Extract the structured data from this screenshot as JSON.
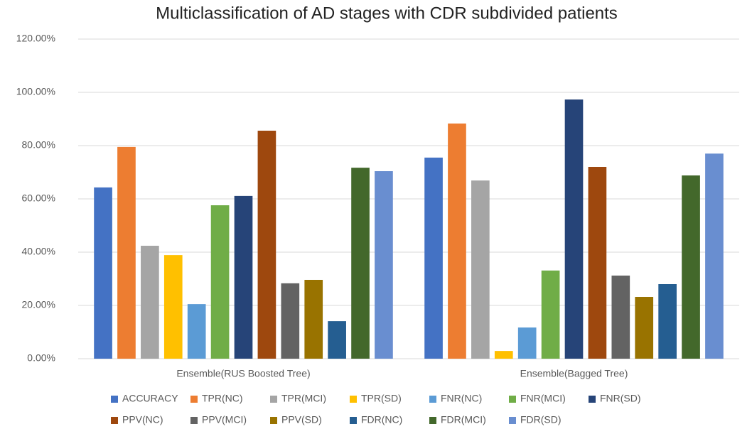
{
  "chart_data": {
    "type": "bar",
    "title": "Multiclassification of AD stages with CDR subdivided patients",
    "categories": [
      "Ensemble(RUS Boosted Tree)",
      "Ensemble(Bagged Tree)"
    ],
    "series": [
      {
        "name": "ACCURACY",
        "color": "#4472c4",
        "values": [
          64.3,
          75.5
        ]
      },
      {
        "name": "TPR(NC)",
        "color": "#ed7d31",
        "values": [
          79.5,
          88.3
        ]
      },
      {
        "name": "TPR(MCI)",
        "color": "#a5a5a5",
        "values": [
          42.4,
          66.9
        ]
      },
      {
        "name": "TPR(SD)",
        "color": "#ffc000",
        "values": [
          38.9,
          2.9
        ]
      },
      {
        "name": "FNR(NC)",
        "color": "#5b9bd5",
        "values": [
          20.5,
          11.7
        ]
      },
      {
        "name": "FNR(MCI)",
        "color": "#70ad47",
        "values": [
          57.6,
          33.1
        ]
      },
      {
        "name": "FNR(SD)",
        "color": "#264478",
        "values": [
          61.1,
          97.3
        ]
      },
      {
        "name": "PPV(NC)",
        "color": "#9e480e",
        "values": [
          85.6,
          72.0
        ]
      },
      {
        "name": "PPV(MCI)",
        "color": "#636363",
        "values": [
          28.3,
          31.2
        ]
      },
      {
        "name": "PPV(SD)",
        "color": "#997300",
        "values": [
          29.6,
          23.2
        ]
      },
      {
        "name": "FDR(NC)",
        "color": "#255e91",
        "values": [
          14.1,
          28.0
        ]
      },
      {
        "name": "FDR(MCI)",
        "color": "#43682b",
        "values": [
          71.7,
          68.8
        ]
      },
      {
        "name": "FDR(SD)",
        "color": "#698ed0",
        "values": [
          70.4,
          77.0
        ]
      }
    ],
    "ylim": [
      0,
      120
    ],
    "yticks": [
      {
        "value": 0,
        "label": "0.00%"
      },
      {
        "value": 20,
        "label": "20.00%"
      },
      {
        "value": 40,
        "label": "40.00%"
      },
      {
        "value": 60,
        "label": "60.00%"
      },
      {
        "value": 80,
        "label": "80.00%"
      },
      {
        "value": 100,
        "label": "100.00%"
      },
      {
        "value": 120,
        "label": "120.00%"
      }
    ],
    "grid": true,
    "legend": "bottom"
  }
}
